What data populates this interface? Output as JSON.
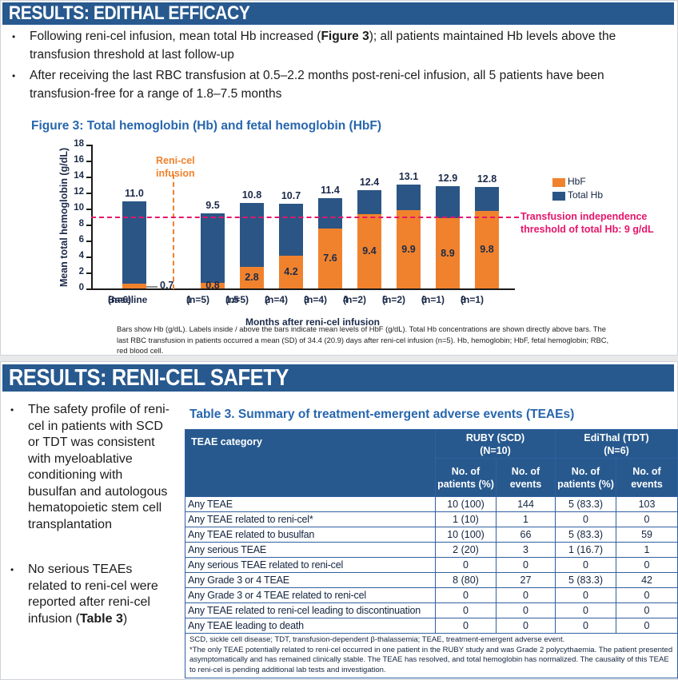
{
  "colors": {
    "banner_navy": "#27598E",
    "bar_blue": "#2B5585",
    "hbf_orange": "#F0822D",
    "threshold_pink": "#E6156B",
    "title_blue": "#2766AE"
  },
  "section_efficacy": {
    "header": "RESULTS: EDITHAL EFFICACY",
    "bullets": [
      [
        {
          "t": "Following reni-cel infusion, mean total Hb increased (",
          "b": false
        },
        {
          "t": "Figure 3",
          "b": true
        },
        {
          "t": "); all patients maintained Hb levels above the transfusion threshold at last follow-up",
          "b": false
        }
      ],
      [
        {
          "t": "After receiving the last RBC transfusion at 0.5–2.2 months post-reni-cel infusion, all 5 patients have been transfusion-free for a range of 1.8–7.5 months",
          "b": false
        }
      ]
    ],
    "figure_title": "Figure 3: Total hemoglobin (Hb) and fetal hemoglobin (HbF)",
    "footnote": "Bars show Hb (g/dL). Labels inside / above the bars indicate mean levels of HbF (g/dL). Total Hb concentrations are shown directly above bars. The last RBC transfusion in patients occurred a mean (SD) of 34.4 (20.9) days after reni-cel infusion (n=5). Hb, hemoglobin; HbF, fetal hemoglobin; RBC, red blood cell."
  },
  "chart_data": {
    "type": "bar",
    "stacked": true,
    "title": "Figure 3: Total hemoglobin (Hb) and fetal hemoglobin (HbF)",
    "ylabel": "Mean total hemoglobin (g/dL)",
    "xlabel": "Months after reni-cel infusion",
    "ylim": [
      0,
      18
    ],
    "ytick_step": 2,
    "grid": false,
    "legend_position": "upper right",
    "legend": [
      "HbF",
      "Total Hb"
    ],
    "categories": [
      "Baseline",
      "1",
      "1.5",
      "2",
      "3",
      "4",
      "5",
      "6",
      "8"
    ],
    "category_sublabels": [
      "(n=6)",
      "(n=5)",
      "(n=5)",
      "(n=4)",
      "(n=4)",
      "(n=2)",
      "(n=2)",
      "(n=1)",
      "(n=1)"
    ],
    "series": [
      {
        "name": "HbF",
        "color": "#F0822D",
        "values": [
          0.7,
          0.8,
          2.8,
          4.2,
          7.6,
          9.4,
          9.9,
          8.9,
          9.8
        ]
      },
      {
        "name": "Total Hb",
        "color": "#2B5585",
        "values": [
          11.0,
          9.5,
          10.8,
          10.7,
          11.4,
          12.4,
          13.1,
          12.9,
          12.8
        ]
      }
    ],
    "total_labels": [
      "11.0",
      "9.5",
      "10.8",
      "10.7",
      "11.4",
      "12.4",
      "13.1",
      "12.9",
      "12.8"
    ],
    "hbf_labels": [
      "0.7",
      "0.8",
      "2.8",
      "4.2",
      "7.6",
      "9.4",
      "9.9",
      "8.9",
      "9.8"
    ],
    "annotations": {
      "infusion_line_label": "Reni-cel infusion",
      "threshold_value": 9,
      "threshold_label": "Transfusion independence threshold of total Hb: 9 g/dL"
    }
  },
  "section_safety": {
    "header": "RESULTS: RENI-CEL SAFETY",
    "bullets": [
      [
        {
          "t": "The safety profile of reni-cel in patients with SCD or TDT was consistent with myeloablative conditioning with busulfan and autologous hematopoietic stem cell transplantation",
          "b": false
        }
      ],
      [
        {
          "t": "No serious TEAEs related to reni-cel were reported after reni-cel infusion (",
          "b": false
        },
        {
          "t": "Table 3",
          "b": true
        },
        {
          "t": ")",
          "b": false
        }
      ]
    ],
    "table": {
      "title": "Table 3. Summary of treatment-emergent adverse events (TEAEs)",
      "col0_header": "TEAE category",
      "groups": [
        {
          "line1": "RUBY (SCD)",
          "line2": "(N=10)"
        },
        {
          "line1": "EdiThal (TDT)",
          "line2": "(N=6)"
        }
      ],
      "subheaders": [
        "No. of patients (%)",
        "No. of events",
        "No. of patients (%)",
        "No. of events"
      ],
      "rows": [
        {
          "label": "Any TEAE",
          "indent": false,
          "values": [
            "10 (100)",
            "144",
            "5 (83.3)",
            "103"
          ]
        },
        {
          "label": "Any TEAE related to reni-cel*",
          "indent": true,
          "values": [
            "1 (10)",
            "1",
            "0",
            "0"
          ]
        },
        {
          "label": "Any TEAE related to busulfan",
          "indent": true,
          "values": [
            "10 (100)",
            "66",
            "5 (83.3)",
            "59"
          ]
        },
        {
          "label": "Any serious TEAE",
          "indent": false,
          "values": [
            "2 (20)",
            "3",
            "1 (16.7)",
            "1"
          ]
        },
        {
          "label": "Any serious TEAE related to reni-cel",
          "indent": true,
          "values": [
            "0",
            "0",
            "0",
            "0"
          ]
        },
        {
          "label": "Any Grade 3 or 4 TEAE",
          "indent": false,
          "values": [
            "8 (80)",
            "27",
            "5 (83.3)",
            "42"
          ]
        },
        {
          "label": "Any Grade 3 or 4 TEAE related to reni-cel",
          "indent": true,
          "values": [
            "0",
            "0",
            "0",
            "0"
          ]
        },
        {
          "label": "Any TEAE related to reni-cel leading to discontinuation",
          "indent": false,
          "values": [
            "0",
            "0",
            "0",
            "0"
          ]
        },
        {
          "label": "Any TEAE leading to death",
          "indent": false,
          "values": [
            "0",
            "0",
            "0",
            "0"
          ]
        }
      ],
      "footnotes": [
        "SCD, sickle cell disease; TDT, transfusion-dependent β-thalassemia; TEAE, treatment-emergent adverse event.",
        "*The only TEAE potentially related to reni-cel occurred in one patient in the RUBY study and was Grade 2 polycythaemia. The patient presented asymptomatically and has remained clinically stable. The TEAE has resolved, and total hemoglobin has normalized. The causality of this TEAE to reni-cel is pending additional lab tests and investigation."
      ]
    }
  }
}
